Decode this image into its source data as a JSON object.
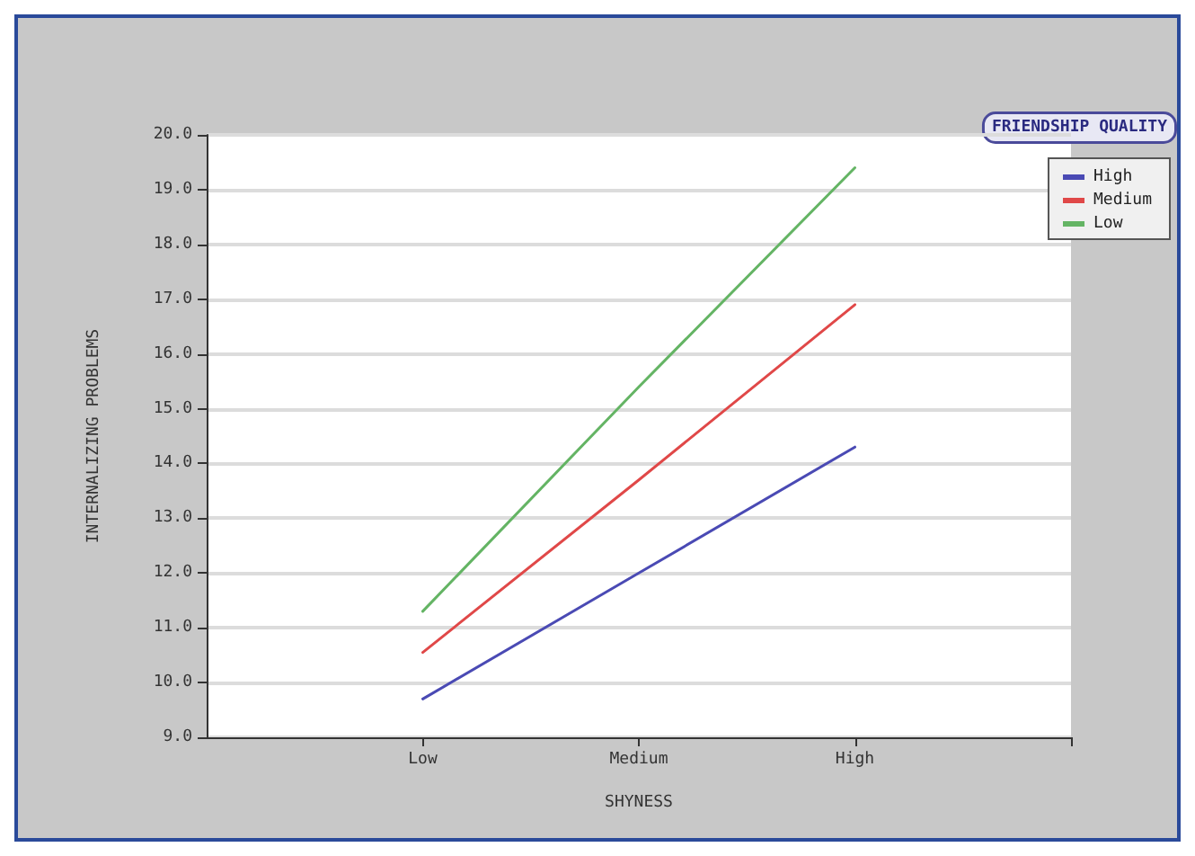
{
  "chart_data": {
    "type": "line",
    "xlabel": "SHYNESS",
    "ylabel": "INTERNALIZING PROBLEMS",
    "legend_title": "FRIENDSHIP QUALITY",
    "categories": [
      "Low",
      "Medium",
      "High"
    ],
    "series": [
      {
        "name": "High",
        "color": "#4a4ab4",
        "values": [
          9.7,
          12.0,
          14.3
        ]
      },
      {
        "name": "Medium",
        "color": "#e04848",
        "values": [
          10.55,
          13.7,
          16.9
        ]
      },
      {
        "name": "Low",
        "color": "#64b464",
        "values": [
          11.3,
          15.4,
          19.4
        ]
      }
    ],
    "ylim": [
      9,
      20
    ],
    "yticks": [
      {
        "value": 9,
        "label": "9.0"
      },
      {
        "value": 10,
        "label": "10.0"
      },
      {
        "value": 11,
        "label": "11.0"
      },
      {
        "value": 12,
        "label": "12.0"
      },
      {
        "value": 13,
        "label": "13.0"
      },
      {
        "value": 14,
        "label": "14.0"
      },
      {
        "value": 15,
        "label": "15.0"
      },
      {
        "value": 16,
        "label": "16.0"
      },
      {
        "value": 17,
        "label": "17.0"
      },
      {
        "value": 18,
        "label": "18.0"
      },
      {
        "value": 19,
        "label": "19.0"
      },
      {
        "value": 20,
        "label": "20.0"
      }
    ],
    "grid": "y",
    "legend": "top right",
    "marker": "none",
    "line_style": "solid"
  }
}
